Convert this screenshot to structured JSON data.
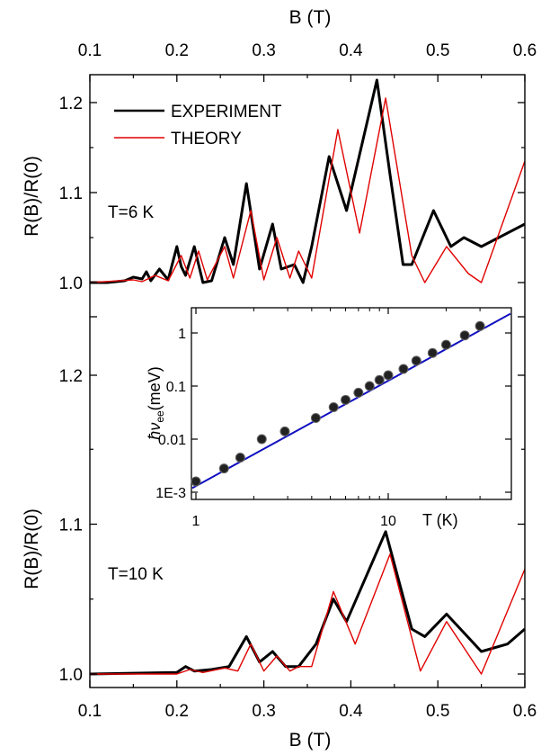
{
  "chart_data": [
    {
      "type": "line",
      "panel": "top",
      "xlabel": "B (T)",
      "ylabel": "R(B)/R(0)",
      "xlim": [
        0.1,
        0.6
      ],
      "ylim": [
        0.985,
        1.235
      ],
      "x_ticks": [
        "0.1",
        "0.2",
        "0.3",
        "0.4",
        "0.5",
        "0.6"
      ],
      "y_ticks": [
        {
          "v": 1.0,
          "label": "1.0"
        },
        {
          "v": 1.1,
          "label": "1.1"
        },
        {
          "v": 1.2,
          "label": "1.2"
        }
      ],
      "annotation": "T=6 K",
      "legend": {
        "position": "top-left",
        "entries": [
          "EXPERIMENT",
          "THEORY"
        ]
      },
      "series": [
        {
          "name": "EXPERIMENT",
          "color": "#000000",
          "points": [
            [
              0.1,
              1.0
            ],
            [
              0.12,
              1.0
            ],
            [
              0.14,
              1.002
            ],
            [
              0.15,
              1.006
            ],
            [
              0.16,
              1.004
            ],
            [
              0.165,
              1.012
            ],
            [
              0.17,
              1.002
            ],
            [
              0.18,
              1.015
            ],
            [
              0.19,
              1.003
            ],
            [
              0.2,
              1.04
            ],
            [
              0.205,
              1.018
            ],
            [
              0.21,
              1.008
            ],
            [
              0.22,
              1.04
            ],
            [
              0.23,
              1.0
            ],
            [
              0.24,
              1.002
            ],
            [
              0.255,
              1.05
            ],
            [
              0.265,
              1.02
            ],
            [
              0.28,
              1.11
            ],
            [
              0.295,
              1.015
            ],
            [
              0.31,
              1.065
            ],
            [
              0.32,
              1.015
            ],
            [
              0.335,
              1.02
            ],
            [
              0.345,
              1.0
            ],
            [
              0.355,
              1.04
            ],
            [
              0.375,
              1.14
            ],
            [
              0.395,
              1.08
            ],
            [
              0.43,
              1.225
            ],
            [
              0.445,
              1.12
            ],
            [
              0.46,
              1.02
            ],
            [
              0.47,
              1.02
            ],
            [
              0.495,
              1.08
            ],
            [
              0.515,
              1.04
            ],
            [
              0.53,
              1.05
            ],
            [
              0.55,
              1.04
            ],
            [
              0.6,
              1.065
            ]
          ]
        },
        {
          "name": "THEORY",
          "color": "#e00000",
          "points": [
            [
              0.1,
              1.0
            ],
            [
              0.15,
              1.003
            ],
            [
              0.16,
              1.001
            ],
            [
              0.175,
              1.008
            ],
            [
              0.19,
              1.002
            ],
            [
              0.205,
              1.03
            ],
            [
              0.215,
              1.005
            ],
            [
              0.225,
              1.035
            ],
            [
              0.235,
              1.003
            ],
            [
              0.255,
              1.04
            ],
            [
              0.265,
              1.005
            ],
            [
              0.285,
              1.08
            ],
            [
              0.3,
              1.003
            ],
            [
              0.315,
              1.05
            ],
            [
              0.33,
              1.005
            ],
            [
              0.34,
              1.035
            ],
            [
              0.355,
              1.005
            ],
            [
              0.385,
              1.17
            ],
            [
              0.41,
              1.055
            ],
            [
              0.44,
              1.205
            ],
            [
              0.47,
              1.03
            ],
            [
              0.485,
              1.0
            ],
            [
              0.51,
              1.04
            ],
            [
              0.535,
              1.01
            ],
            [
              0.55,
              1.0
            ],
            [
              0.6,
              1.135
            ]
          ]
        }
      ]
    },
    {
      "type": "line",
      "panel": "bottom",
      "xlabel": "B (T)",
      "ylabel": "R(B)/R(0)",
      "xlim": [
        0.1,
        0.6
      ],
      "ylim": [
        0.985,
        1.235
      ],
      "x_ticks": [
        "0.1",
        "0.2",
        "0.3",
        "0.4",
        "0.5",
        "0.6"
      ],
      "y_ticks": [
        {
          "v": 1.0,
          "label": "1.0"
        },
        {
          "v": 1.1,
          "label": "1.1"
        },
        {
          "v": 1.2,
          "label": "1.2"
        }
      ],
      "annotation": "T=10 K",
      "series": [
        {
          "name": "EXPERIMENT",
          "color": "#000000",
          "points": [
            [
              0.1,
              1.0
            ],
            [
              0.2,
              1.001
            ],
            [
              0.21,
              1.005
            ],
            [
              0.22,
              1.002
            ],
            [
              0.24,
              1.003
            ],
            [
              0.26,
              1.005
            ],
            [
              0.28,
              1.025
            ],
            [
              0.295,
              1.008
            ],
            [
              0.31,
              1.015
            ],
            [
              0.325,
              1.005
            ],
            [
              0.34,
              1.005
            ],
            [
              0.36,
              1.02
            ],
            [
              0.38,
              1.05
            ],
            [
              0.395,
              1.035
            ],
            [
              0.44,
              1.095
            ],
            [
              0.47,
              1.03
            ],
            [
              0.485,
              1.025
            ],
            [
              0.51,
              1.04
            ],
            [
              0.55,
              1.015
            ],
            [
              0.58,
              1.02
            ],
            [
              0.6,
              1.03
            ]
          ]
        },
        {
          "name": "THEORY",
          "color": "#e00000",
          "points": [
            [
              0.1,
              1.0
            ],
            [
              0.2,
              1.0
            ],
            [
              0.215,
              1.003
            ],
            [
              0.23,
              1.001
            ],
            [
              0.255,
              1.004
            ],
            [
              0.27,
              1.002
            ],
            [
              0.285,
              1.02
            ],
            [
              0.3,
              1.002
            ],
            [
              0.315,
              1.012
            ],
            [
              0.33,
              1.002
            ],
            [
              0.34,
              1.005
            ],
            [
              0.355,
              1.005
            ],
            [
              0.38,
              1.055
            ],
            [
              0.405,
              1.02
            ],
            [
              0.445,
              1.08
            ],
            [
              0.48,
              1.002
            ],
            [
              0.51,
              1.035
            ],
            [
              0.55,
              1.0
            ],
            [
              0.6,
              1.07
            ]
          ]
        }
      ]
    },
    {
      "type": "scatter",
      "panel": "inset",
      "xlabel": "T (K)",
      "ylabel": "ħν_ee(meV)",
      "ylabel_main": "ħν",
      "ylabel_sub": "ee",
      "ylabel_unit": "(meV)",
      "xscale": "log",
      "yscale": "log",
      "xlim": [
        1,
        35
      ],
      "ylim": [
        0.00085,
        2.5
      ],
      "x_ticks": [
        {
          "v": 1,
          "label": "1"
        },
        {
          "v": 10,
          "label": "10"
        }
      ],
      "y_ticks": [
        {
          "v": 0.001,
          "label": "1E-3"
        },
        {
          "v": 0.01,
          "label": "0.01"
        },
        {
          "v": 0.1,
          "label": "0.1"
        },
        {
          "v": 1,
          "label": "1"
        }
      ],
      "points": [
        [
          1,
          0.0016
        ],
        [
          1.4,
          0.0028
        ],
        [
          1.7,
          0.0045
        ],
        [
          2.2,
          0.01
        ],
        [
          2.9,
          0.014
        ],
        [
          4.2,
          0.025
        ],
        [
          5.2,
          0.04
        ],
        [
          6,
          0.055
        ],
        [
          7,
          0.075
        ],
        [
          8,
          0.1
        ],
        [
          9,
          0.13
        ],
        [
          10,
          0.16
        ],
        [
          12,
          0.21
        ],
        [
          14,
          0.3
        ],
        [
          17,
          0.42
        ],
        [
          20,
          0.6
        ],
        [
          25,
          0.9
        ],
        [
          30,
          1.35
        ]
      ],
      "fit": [
        [
          0.75,
          0.0009
        ],
        [
          35,
          2.3
        ]
      ],
      "fit_color": "#1010c0",
      "point_color": "#222222"
    }
  ]
}
